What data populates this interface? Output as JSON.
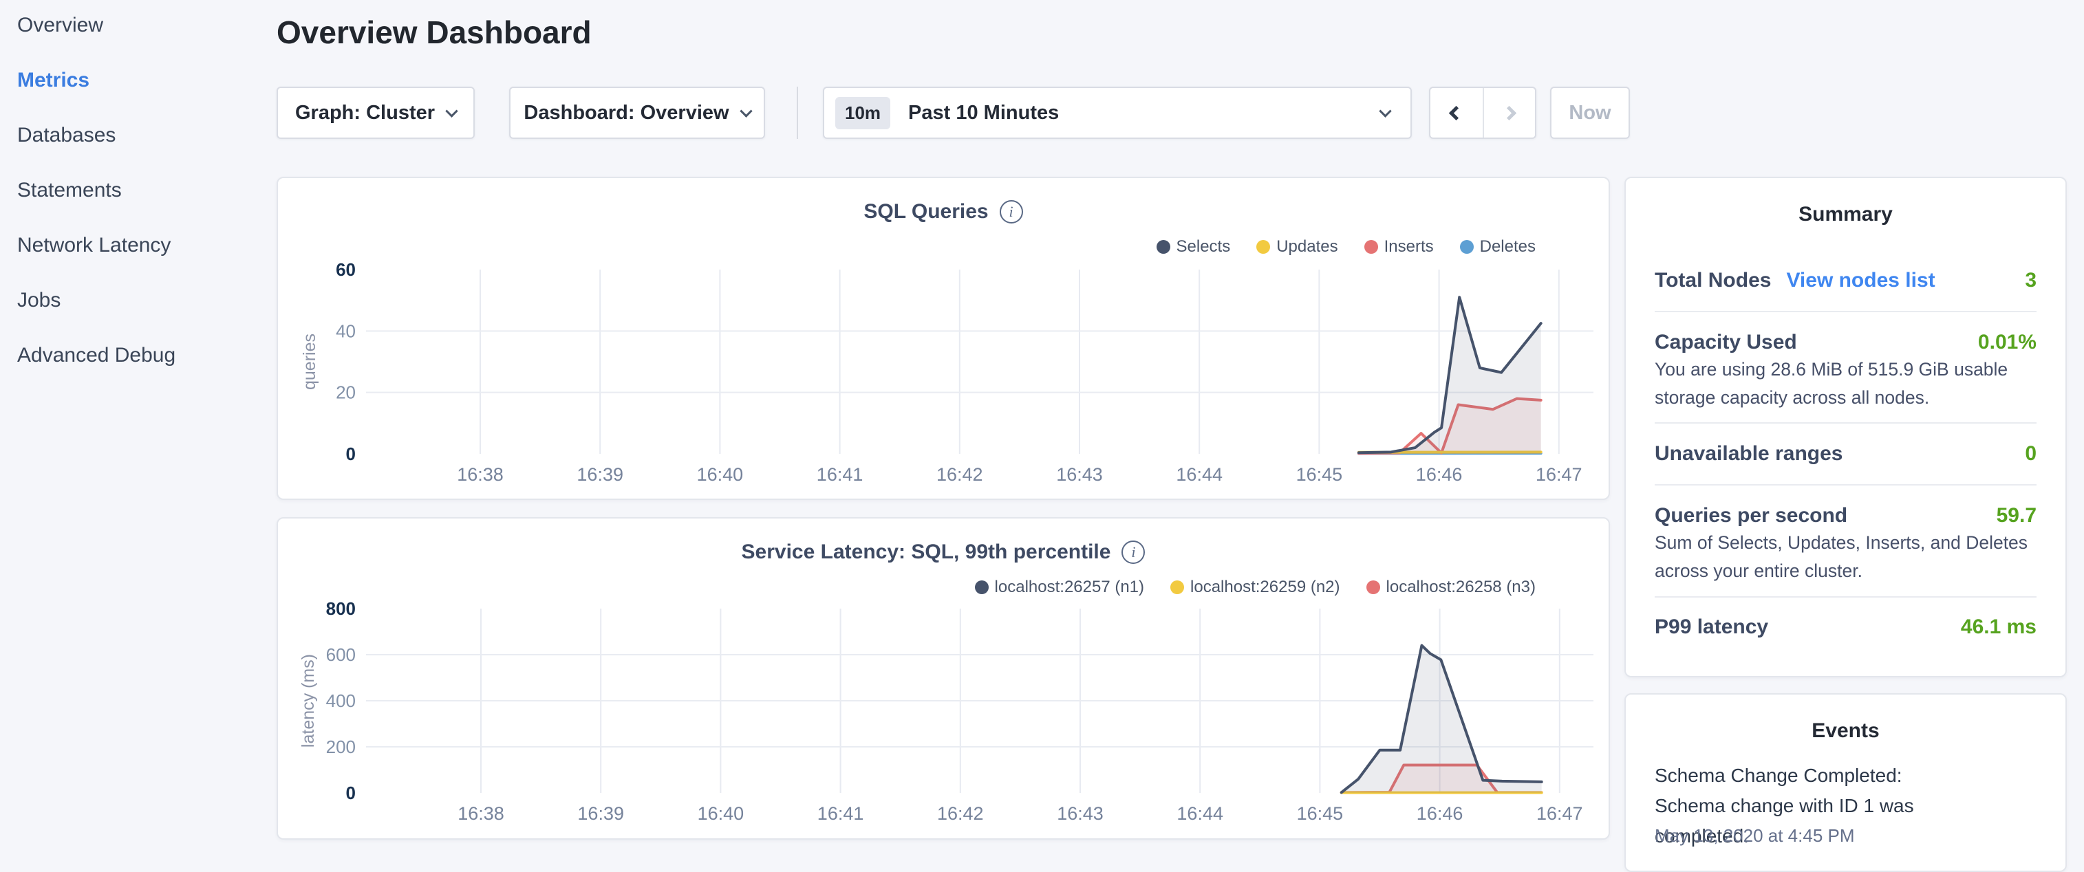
{
  "sidebar": {
    "items": [
      {
        "label": "Overview",
        "active": false
      },
      {
        "label": "Metrics",
        "active": true
      },
      {
        "label": "Databases",
        "active": false
      },
      {
        "label": "Statements",
        "active": false
      },
      {
        "label": "Network Latency",
        "active": false
      },
      {
        "label": "Jobs",
        "active": false
      },
      {
        "label": "Advanced Debug",
        "active": false
      }
    ]
  },
  "header": {
    "title": "Overview Dashboard"
  },
  "controls": {
    "graph_label": "Graph: Cluster",
    "dashboard_label": "Dashboard: Overview",
    "range_badge": "10m",
    "range_label": "Past 10 Minutes",
    "now_label": "Now",
    "icons": {
      "graph_dropdown": "chevron-down-icon",
      "dashboard_dropdown": "chevron-down-icon",
      "range_dropdown": "chevron-down-icon",
      "prev": "chevron-left-icon",
      "next": "chevron-right-icon"
    }
  },
  "colors": {
    "accent_blue": "#3b7de0",
    "link_blue": "#3f86f0",
    "value_green": "#56a31f",
    "background": "#f5f6fa"
  },
  "chart_data": [
    {
      "type": "area",
      "title": "SQL Queries",
      "ylabel": "queries",
      "xlabel": "",
      "ylim": [
        0,
        60
      ],
      "y_ticks": [
        60,
        40,
        20,
        0
      ],
      "x_ticks": [
        "16:38",
        "16:39",
        "16:40",
        "16:41",
        "16:42",
        "16:43",
        "16:44",
        "16:45",
        "16:46",
        "16:47"
      ],
      "grid": true,
      "legend_position": "top-right",
      "x_unit": "minutes since 16:38",
      "series": [
        {
          "name": "Selects",
          "color": "#46536b",
          "points": [
            [
              7.33,
              0.4
            ],
            [
              7.6,
              0.6
            ],
            [
              7.8,
              2
            ],
            [
              7.96,
              7
            ],
            [
              8.02,
              8.5
            ],
            [
              8.17,
              51
            ],
            [
              8.34,
              28
            ],
            [
              8.52,
              26.5
            ],
            [
              8.85,
              42.5
            ]
          ]
        },
        {
          "name": "Updates",
          "color": "#f2ca40",
          "points": [
            [
              7.33,
              0.5
            ],
            [
              8.85,
              0.6
            ]
          ]
        },
        {
          "name": "Inserts",
          "color": "#e57373",
          "points": [
            [
              7.33,
              0.2
            ],
            [
              7.67,
              0.3
            ],
            [
              7.85,
              6.7
            ],
            [
              8.02,
              0.3
            ],
            [
              8.16,
              16
            ],
            [
              8.45,
              14.5
            ],
            [
              8.65,
              18
            ],
            [
              8.85,
              17.5
            ]
          ]
        },
        {
          "name": "Deletes",
          "color": "#5d9fd3",
          "points": [
            [
              7.33,
              0.15
            ],
            [
              8.85,
              0.2
            ]
          ]
        }
      ]
    },
    {
      "type": "area",
      "title": "Service Latency: SQL, 99th percentile",
      "ylabel": "latency (ms)",
      "xlabel": "",
      "ylim": [
        0,
        800
      ],
      "y_ticks": [
        800,
        600,
        400,
        200,
        0
      ],
      "x_ticks": [
        "16:38",
        "16:39",
        "16:40",
        "16:41",
        "16:42",
        "16:43",
        "16:44",
        "16:45",
        "16:46",
        "16:47"
      ],
      "grid": true,
      "legend_position": "top-right",
      "x_unit": "minutes since 16:38",
      "series": [
        {
          "name": "localhost:26257 (n1)",
          "color": "#46536b",
          "points": [
            [
              7.18,
              2
            ],
            [
              7.32,
              60
            ],
            [
              7.5,
              186
            ],
            [
              7.67,
              186
            ],
            [
              7.85,
              640
            ],
            [
              7.92,
              605
            ],
            [
              8.01,
              578
            ],
            [
              8.36,
              55
            ],
            [
              8.52,
              51
            ],
            [
              8.85,
              48
            ]
          ]
        },
        {
          "name": "localhost:26259 (n2)",
          "color": "#f2ca40",
          "points": [
            [
              7.18,
              1
            ],
            [
              8.85,
              1
            ]
          ]
        },
        {
          "name": "localhost:26258 (n3)",
          "color": "#e57373",
          "points": [
            [
              7.18,
              2
            ],
            [
              7.58,
              3
            ],
            [
              7.7,
              121
            ],
            [
              8.31,
              121
            ],
            [
              8.48,
              2
            ],
            [
              8.85,
              2
            ]
          ]
        }
      ]
    }
  ],
  "summary": {
    "title": "Summary",
    "rows": [
      {
        "label": "Total Nodes",
        "link": "View nodes list",
        "value": "3",
        "description": ""
      },
      {
        "label": "Capacity Used",
        "value": "0.01%",
        "description": "You are using 28.6 MiB of 515.9 GiB usable storage capacity across all nodes."
      },
      {
        "label": "Unavailable ranges",
        "value": "0",
        "description": ""
      },
      {
        "label": "Queries per second",
        "value": "59.7",
        "description": "Sum of Selects, Updates, Inserts, and Deletes across your entire cluster."
      },
      {
        "label": "P99 latency",
        "value": "46.1 ms",
        "description": ""
      }
    ]
  },
  "events": {
    "title": "Events",
    "entries": [
      {
        "text": "Schema Change Completed: Schema change with ID 1 was completed.",
        "timestamp": "May 13, 2020 at 4:45 PM"
      }
    ]
  }
}
